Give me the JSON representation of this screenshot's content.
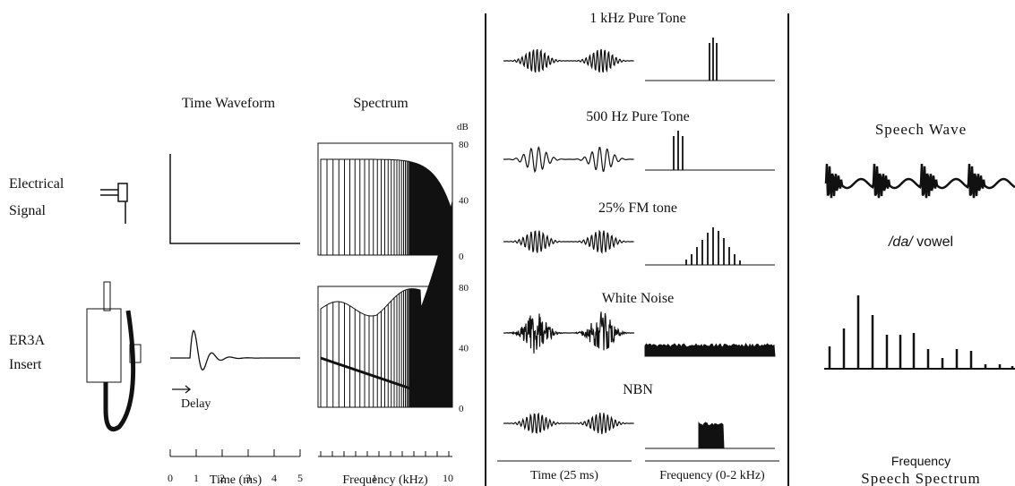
{
  "left": {
    "row_labels": [
      [
        "Electrical",
        "Signal"
      ],
      [
        "ER3A",
        "Insert"
      ]
    ],
    "headers": [
      "Time Waveform",
      "Spectrum"
    ],
    "db_unit": "dB",
    "db_ticks": [
      "80",
      "40",
      "0"
    ],
    "time_ticks": [
      "0",
      "1",
      "2",
      "3",
      "4",
      "5"
    ],
    "freq_ticks": [
      "1",
      "10"
    ],
    "delay": "Delay",
    "time_axis_label": "Time (ms)",
    "freq_axis_label": "Frequency (kHz)"
  },
  "middle": {
    "rows": [
      "1 kHz Pure Tone",
      "500 Hz Pure Tone",
      "25% FM tone",
      "White Noise",
      "NBN"
    ],
    "time_label": "Time (25 ms)",
    "freq_label": "Frequency (0-2 kHz)"
  },
  "right": {
    "wave_title": "Speech Wave",
    "wave_caption_italic": "/da/",
    "wave_caption": "vowel",
    "spectrum_axis": "Frequency",
    "spectrum_title": "Speech Spectrum"
  }
}
